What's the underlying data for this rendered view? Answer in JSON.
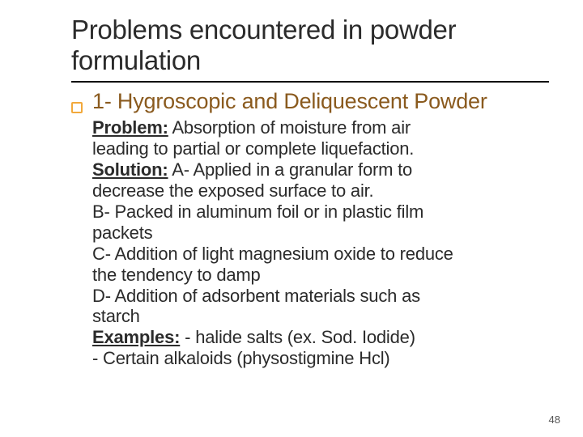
{
  "colors": {
    "title": "#2b2b2b",
    "rule": "#000000",
    "bullet_border": "#f2a93c",
    "subhead": "#8a5a1e",
    "body": "#2b2b2b",
    "pagenum": "#555555",
    "background": "#ffffff"
  },
  "fonts": {
    "title_size": 33,
    "subhead_size": 27,
    "body_size": 22,
    "pagenum_size": 13
  },
  "title_line1": "Problems encountered in powder",
  "title_line2": "formulation",
  "subhead": "1- Hygroscopic and Deliquescent Powder",
  "body": {
    "problem_label": "Problem:",
    "problem_text1": " Absorption of moisture from air",
    "problem_text2": "leading to partial or complete liquefaction.",
    "solution_label": "Solution:",
    "sol_a1": " A- Applied in a granular form to",
    "sol_a2": "decrease the exposed surface to air.",
    "sol_b1": "B- Packed in aluminum foil or in plastic film",
    "sol_b2": "packets",
    "sol_c1": "C- Addition of light magnesium oxide to reduce",
    "sol_c2": "the tendency to damp",
    "sol_d1": "D- Addition of adsorbent materials such as",
    "sol_d2": "starch",
    "examples_label": "Examples:",
    "ex1": " - halide salts (ex. Sod. Iodide)",
    "ex2": "- Certain alkaloids (physostigmine Hcl)"
  },
  "pagenum": "48"
}
